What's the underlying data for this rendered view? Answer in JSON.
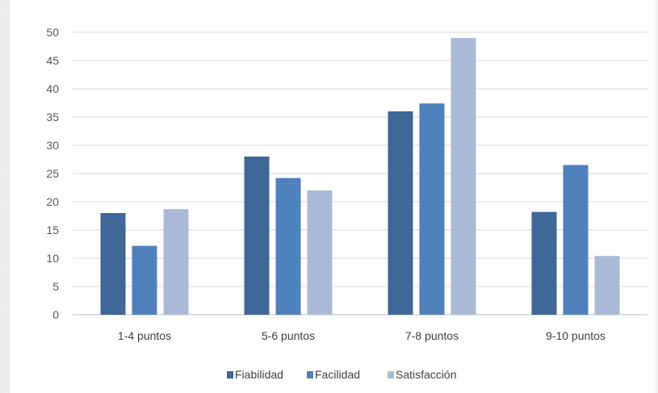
{
  "chart_data": {
    "type": "bar",
    "title": "",
    "xlabel": "",
    "ylabel": "",
    "categories": [
      "1-4 puntos",
      "5-6 puntos",
      "7-8 puntos",
      "9-10 puntos"
    ],
    "series": [
      {
        "name": "Fiabilidad",
        "color": "#3f6797",
        "values": [
          18,
          28,
          36,
          18.2
        ]
      },
      {
        "name": "Facilidad",
        "color": "#4f81bd",
        "values": [
          12.2,
          24.2,
          37.4,
          26.5
        ]
      },
      {
        "name": "Satisfacción",
        "color": "#a9bad9",
        "values": [
          18.7,
          22,
          49,
          10.4
        ]
      }
    ],
    "ylim": [
      0,
      50
    ],
    "yticks": [
      "0",
      "5",
      "10",
      "15",
      "20",
      "25",
      "30",
      "35",
      "40",
      "45",
      "50"
    ],
    "grid": true,
    "legend_position": "bottom-center"
  }
}
